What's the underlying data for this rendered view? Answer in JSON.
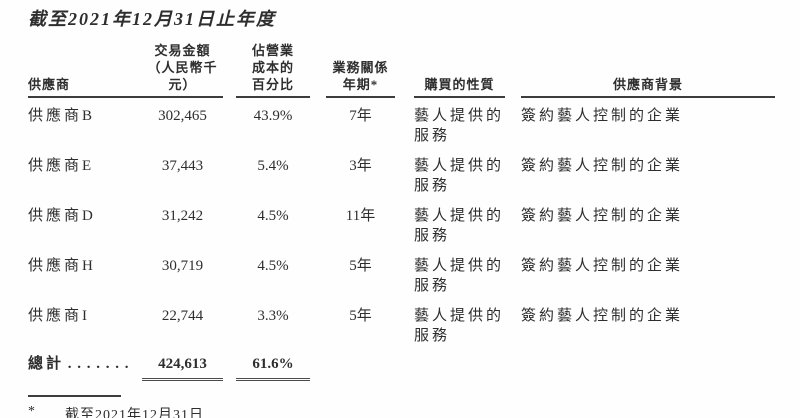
{
  "title": "截至2021年12月31日止年度",
  "table": {
    "header": {
      "supplier": "供應商",
      "amount": [
        "交易金額",
        "（人民幣千元）"
      ],
      "percent": [
        "佔營業",
        "成本的",
        "百分比"
      ],
      "years": [
        "業務關係",
        "年期*"
      ],
      "nature": "購買的性質",
      "background": "供應商背景"
    },
    "rows": [
      {
        "supplier": "供應商B",
        "amount": "302,465",
        "percent": "43.9%",
        "years": "7年",
        "nature": [
          "藝人提供的",
          "服務"
        ],
        "background": "簽約藝人控制的企業"
      },
      {
        "supplier": "供應商E",
        "amount": "37,443",
        "percent": "5.4%",
        "years": "3年",
        "nature": [
          "藝人提供的",
          "服務"
        ],
        "background": "簽約藝人控制的企業"
      },
      {
        "supplier": "供應商D",
        "amount": "31,242",
        "percent": "4.5%",
        "years": "11年",
        "nature": [
          "藝人提供的",
          "服務"
        ],
        "background": "簽約藝人控制的企業"
      },
      {
        "supplier": "供應商H",
        "amount": "30,719",
        "percent": "4.5%",
        "years": "5年",
        "nature": [
          "藝人提供的",
          "服務"
        ],
        "background": "簽約藝人控制的企業"
      },
      {
        "supplier": "供應商I",
        "amount": "22,744",
        "percent": "3.3%",
        "years": "5年",
        "nature": [
          "藝人提供的",
          "服務"
        ],
        "background": "簽約藝人控制的企業"
      }
    ],
    "total": {
      "label": "總計",
      "leader_dots": ". . . . . . .",
      "amount": "424,613",
      "percent": "61.6%"
    }
  },
  "footnote": {
    "marker": "*",
    "text": "截至2021年12月31日"
  },
  "colors": {
    "text": "#2e2e2e",
    "rule": "#3d3d3d",
    "background": "#fefefe"
  }
}
